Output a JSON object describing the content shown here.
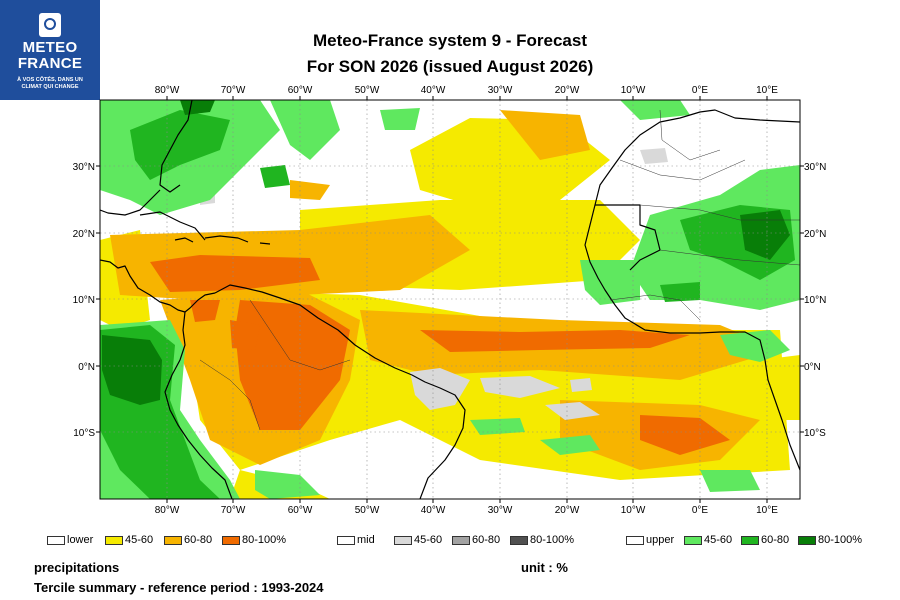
{
  "logo": {
    "name_line1": "METEO",
    "name_line2": "FRANCE",
    "tagline_line1": "À VOS CÔTÉS, DANS UN",
    "tagline_line2": "CLIMAT QUI CHANGE"
  },
  "title": {
    "line1": "Meteo-France system 9  -  Forecast",
    "line2": "For SON 2026      (issued August 2026)"
  },
  "axes": {
    "lon_labels": [
      "80°W",
      "70°W",
      "60°W",
      "50°W",
      "40°W",
      "30°W",
      "20°W",
      "10°W",
      "0°E",
      "10°E"
    ],
    "lat_labels_left": [
      "30°N",
      "20°N",
      "10°N",
      "0°N",
      "10°S"
    ],
    "lat_labels_right": [
      "30°N",
      "20°N",
      "10°N",
      "0°N",
      "10°S"
    ]
  },
  "legend": {
    "lower": {
      "label": "lower",
      "bins": [
        {
          "label": "45-60",
          "color": "#f5ea00"
        },
        {
          "label": "60-80",
          "color": "#f7b400"
        },
        {
          "label": "80-100%",
          "color": "#f06b00"
        }
      ]
    },
    "mid": {
      "label": "mid",
      "bins": [
        {
          "label": "45-60",
          "color": "#d9d9d9"
        },
        {
          "label": "60-80",
          "color": "#a3a3a3"
        },
        {
          "label": "80-100%",
          "color": "#505050"
        }
      ]
    },
    "upper": {
      "label": "upper",
      "bins": [
        {
          "label": "45-60",
          "color": "#5fe85f"
        },
        {
          "label": "60-80",
          "color": "#20b520"
        },
        {
          "label": "80-100%",
          "color": "#087e08"
        }
      ]
    }
  },
  "footer": {
    "variable": "precipitations",
    "unit": "unit : %",
    "summary": "Tercile summary - reference period : 1993-2024"
  }
}
